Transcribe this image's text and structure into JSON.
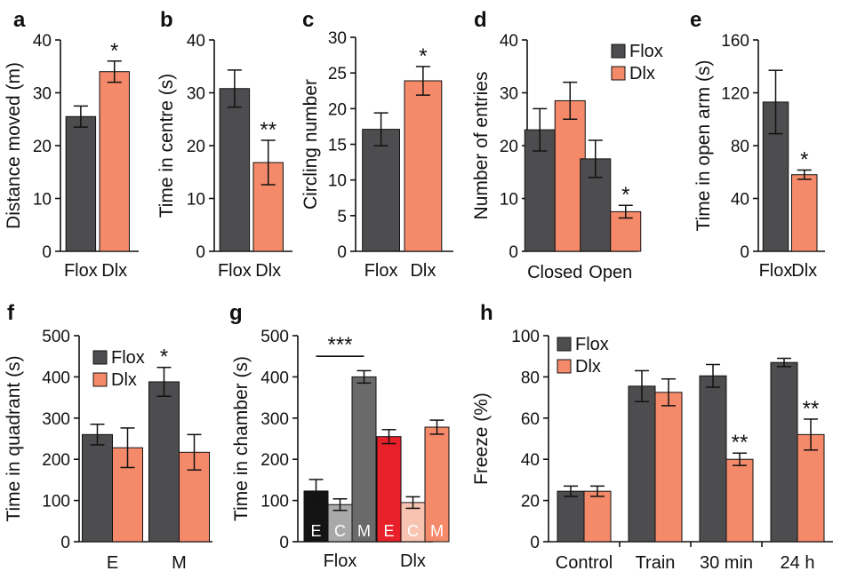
{
  "colors": {
    "flox": "#4d4d4f",
    "dlx": "#f48a6a",
    "axis": "#111111"
  },
  "chart_data": [
    {
      "panel": "a",
      "type": "bar",
      "ylabel": "Distance moved (m)",
      "ylim": [
        0,
        40
      ],
      "yticks": [
        0,
        10,
        20,
        30,
        40
      ],
      "categories": [
        "Flox",
        "Dlx"
      ],
      "values": [
        25.5,
        34
      ],
      "errors": [
        2,
        2
      ],
      "colors": [
        "flox",
        "dlx"
      ],
      "sig": [
        "",
        "*"
      ]
    },
    {
      "panel": "b",
      "type": "bar",
      "ylabel": "Time in centre (s)",
      "ylim": [
        0,
        40
      ],
      "yticks": [
        0,
        10,
        20,
        30,
        40
      ],
      "categories": [
        "Flox",
        "Dlx"
      ],
      "values": [
        30.8,
        16.8
      ],
      "errors": [
        3.5,
        4.2
      ],
      "colors": [
        "flox",
        "dlx"
      ],
      "sig": [
        "",
        "**"
      ]
    },
    {
      "panel": "c",
      "type": "bar",
      "ylabel": "Circling number",
      "ylim": [
        0,
        30
      ],
      "yticks": [
        0,
        5,
        10,
        15,
        20,
        25,
        30
      ],
      "categories": [
        "Flox",
        "Dlx"
      ],
      "values": [
        17.1,
        23.9
      ],
      "errors": [
        2.3,
        2
      ],
      "colors": [
        "flox",
        "dlx"
      ],
      "sig": [
        "",
        "*"
      ]
    },
    {
      "panel": "d",
      "type": "bar",
      "ylabel": "Number of entries",
      "ylim": [
        0,
        40
      ],
      "yticks": [
        0,
        10,
        20,
        30,
        40
      ],
      "categories": [
        "Closed",
        "Open"
      ],
      "legend": [
        "Flox",
        "Dlx"
      ],
      "series": [
        {
          "name": "Flox",
          "color": "flox",
          "values": [
            23,
            17.5
          ],
          "errors": [
            4,
            3.5
          ],
          "sig": [
            "",
            ""
          ]
        },
        {
          "name": "Dlx",
          "color": "dlx",
          "values": [
            28.5,
            7.5
          ],
          "errors": [
            3.5,
            1.2
          ],
          "sig": [
            "",
            "*"
          ]
        }
      ]
    },
    {
      "panel": "e",
      "type": "bar",
      "ylabel": "Time in open arm (s)",
      "ylim": [
        0,
        160
      ],
      "yticks": [
        0,
        40,
        80,
        120,
        160
      ],
      "categories": [
        "Flox",
        "Dlx"
      ],
      "values": [
        113,
        58
      ],
      "errors": [
        24,
        3.5
      ],
      "colors": [
        "flox",
        "dlx"
      ],
      "sig": [
        "",
        "*"
      ]
    },
    {
      "panel": "f",
      "type": "bar",
      "ylabel": "Time in quadrant (s)",
      "ylim": [
        0,
        500
      ],
      "yticks": [
        0,
        100,
        200,
        300,
        400,
        500
      ],
      "categories": [
        "E",
        "M"
      ],
      "legend": [
        "Flox",
        "Dlx"
      ],
      "series": [
        {
          "name": "Flox",
          "color": "flox",
          "values": [
            260,
            388
          ],
          "errors": [
            25,
            35
          ],
          "sig": [
            "",
            "*"
          ]
        },
        {
          "name": "Dlx",
          "color": "dlx",
          "values": [
            228,
            217
          ],
          "errors": [
            48,
            43
          ],
          "sig": [
            "",
            ""
          ]
        }
      ]
    },
    {
      "panel": "g",
      "type": "bar",
      "ylabel": "Time in chamber (s)",
      "ylim": [
        0,
        500
      ],
      "yticks": [
        0,
        100,
        200,
        300,
        400,
        500
      ],
      "groups": [
        "Flox",
        "Dlx"
      ],
      "bracket": "***",
      "bars": [
        {
          "group": 0,
          "label": "E",
          "value": 123,
          "error": 28,
          "color": "#141414"
        },
        {
          "group": 0,
          "label": "C",
          "value": 90,
          "error": 14,
          "color": "#a9a9a9"
        },
        {
          "group": 0,
          "label": "M",
          "value": 400,
          "error": 15,
          "color": "#6a6a6a"
        },
        {
          "group": 1,
          "label": "E",
          "value": 255,
          "error": 17,
          "color": "#e8202a"
        },
        {
          "group": 1,
          "label": "C",
          "value": 95,
          "error": 14,
          "color": "#f8c3b0"
        },
        {
          "group": 1,
          "label": "M",
          "value": 278,
          "error": 17,
          "color": "#f48a6a"
        }
      ]
    },
    {
      "panel": "h",
      "type": "bar",
      "ylabel": "Freeze (%)",
      "ylim": [
        0,
        100
      ],
      "yticks": [
        0,
        20,
        40,
        60,
        80,
        100
      ],
      "categories": [
        "Control",
        "Train",
        "30 min",
        "24 h"
      ],
      "legend": [
        "Flox",
        "Dlx"
      ],
      "series": [
        {
          "name": "Flox",
          "color": "flox",
          "values": [
            24.5,
            75.5,
            80.5,
            87
          ],
          "errors": [
            2.5,
            7.5,
            5.5,
            2
          ],
          "sig": [
            "",
            "",
            "",
            ""
          ]
        },
        {
          "name": "Dlx",
          "color": "dlx",
          "values": [
            24.5,
            72.5,
            40,
            52
          ],
          "errors": [
            2.5,
            6.5,
            3,
            7.5
          ],
          "sig": [
            "",
            "",
            "**",
            "**"
          ]
        }
      ]
    }
  ]
}
